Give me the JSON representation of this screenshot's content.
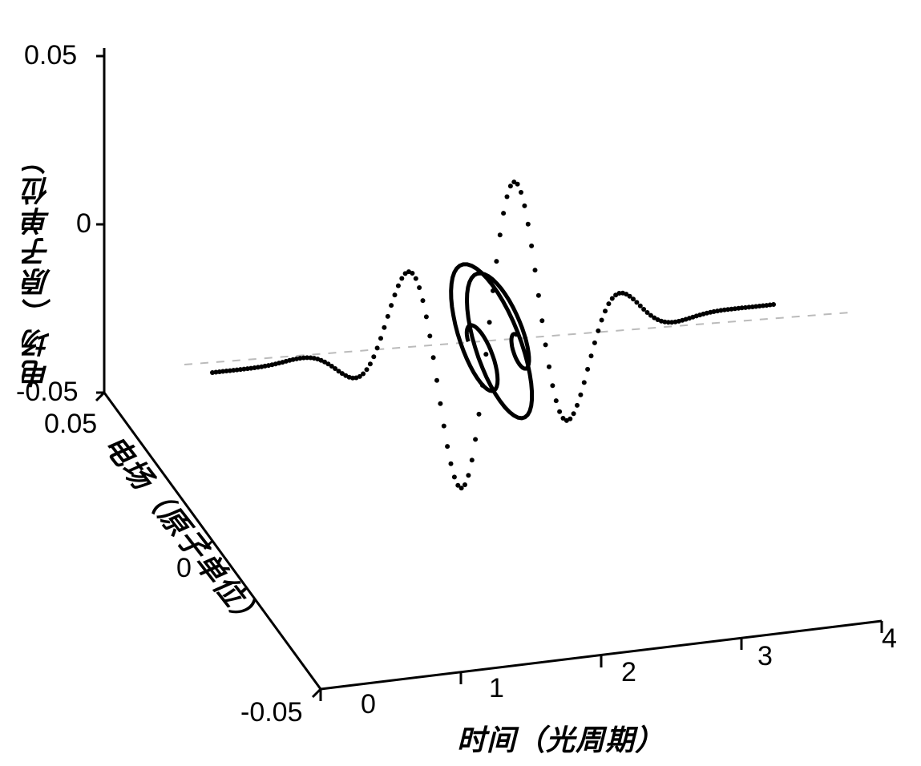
{
  "chart": {
    "type": "3d-line",
    "background_color": "#ffffff",
    "axis_color": "#000000",
    "grid_color": "#cccccc",
    "axes": {
      "x": {
        "label": "时间（光周期）",
        "min": 0,
        "max": 4,
        "ticks": [
          0,
          1,
          2,
          3,
          4
        ],
        "label_fontsize": 36
      },
      "y": {
        "label": "电场（原子单位）",
        "min": -0.05,
        "max": 0.05,
        "ticks": [
          -0.05,
          0,
          0.05
        ],
        "label_fontsize": 36
      },
      "z": {
        "label": "电场（原子单位）",
        "min": -0.05,
        "max": 0.05,
        "ticks": [
          -0.05,
          0,
          0.05
        ],
        "label_fontsize": 36
      }
    },
    "series": [
      {
        "name": "dotted-wave",
        "style": "dotted",
        "color": "#000000",
        "line_width": 4,
        "dot_size": 3,
        "type": "gaussian-pulse-sine",
        "y_plane": 0,
        "x_range": [
          0,
          4
        ],
        "amplitude_profile": "gaussian",
        "center": 2.0,
        "envelope_width": 1.2,
        "frequency": 2.5,
        "max_amplitude": 0.048
      },
      {
        "name": "solid-spiral",
        "style": "solid",
        "color": "#000000",
        "line_width": 4,
        "type": "spiral-burst",
        "x_center": 2.0,
        "x_span": 0.35,
        "radius": 0.018,
        "turns": 3
      }
    ],
    "dashed_baseline": {
      "color": "#999999",
      "dash": "6,6",
      "width": 1.5
    }
  }
}
